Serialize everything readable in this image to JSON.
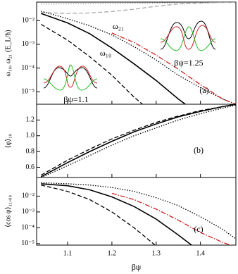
{
  "chart_data": [
    {
      "type": "line",
      "log_y": true,
      "ylabel": "ω₁₀, ω₂₁ (E_L/ħ)",
      "x": [
        1.04,
        1.1,
        1.15,
        1.2,
        1.25,
        1.3,
        1.35,
        1.4,
        1.45,
        1.48
      ],
      "xlim": [
        1.03,
        1.48
      ],
      "xticks": [
        1.1,
        1.2,
        1.3,
        1.4
      ],
      "ylim": [
        3e-06,
        0.06
      ],
      "yticks": [
        {
          "value": 0.01,
          "label": "10⁻²"
        },
        {
          "value": 0.001,
          "label": "10⁻³"
        },
        {
          "value": 0.0001,
          "label": "10⁻⁴"
        },
        {
          "value": 1e-05,
          "label": "10⁻⁵"
        }
      ],
      "series": [
        {
          "color": "#999999",
          "style": "dotted",
          "values": [
            0.05,
            0.051,
            0.052,
            0.053,
            0.054,
            0.055,
            0.056,
            0.057,
            0.058,
            0.058
          ]
        },
        {
          "color": "#aaaaaa",
          "style": "dashed",
          "values": [
            0.022,
            0.02,
            0.021,
            0.024,
            0.03,
            0.04,
            0.05,
            0.055,
            0.058,
            0.06
          ]
        },
        {
          "color": "#000000",
          "style": "solid",
          "values": [
            0.02,
            0.008,
            0.0028,
            0.0007,
            0.00015,
            3e-05,
            5e-06,
            1e-06,
            null,
            null
          ]
        },
        {
          "color": "#000000",
          "style": "dashed",
          "values": [
            0.007,
            0.0015,
            0.0003,
            5e-05,
            6e-06,
            1e-06,
            null,
            null,
            null,
            null
          ]
        },
        {
          "color": "#000000",
          "style": "dotted",
          "values": [
            0.025,
            0.012,
            0.006,
            0.0025,
            0.0008,
            0.00022,
            5e-05,
            1.5e-05,
            5e-06,
            3e-06
          ]
        },
        {
          "color": "#cc2222",
          "style": "dashdot",
          "values": [
            null,
            null,
            null,
            0.003,
            0.0012,
            0.00035,
            9e-05,
            2e-05,
            5e-06,
            3e-06
          ]
        }
      ],
      "annotations": [
        "ω₂₁",
        "ω₁₀",
        "βψ=1.25",
        "βψ=1.1",
        "(a)"
      ]
    },
    {
      "type": "line",
      "log_y": false,
      "ylabel": "⟨φ⟩₁₀",
      "x": [
        1.04,
        1.1,
        1.15,
        1.2,
        1.25,
        1.3,
        1.35,
        1.4,
        1.45,
        1.48
      ],
      "xlim": [
        1.03,
        1.48
      ],
      "xticks": [
        1.1,
        1.2,
        1.3,
        1.4
      ],
      "ylim": [
        0.47,
        1.4
      ],
      "yticks": [
        {
          "value": 0.6,
          "label": "0.6"
        },
        {
          "value": 0.8,
          "label": "0.8"
        },
        {
          "value": 1,
          "label": "1.0"
        },
        1.2
      ],
      "series": [
        {
          "color": "#000000",
          "style": "solid",
          "values": [
            0.48,
            0.66,
            0.8,
            0.93,
            1.05,
            1.15,
            1.24,
            1.31,
            1.37,
            1.4
          ]
        },
        {
          "color": "#000000",
          "style": "dashed",
          "values": [
            0.5,
            0.69,
            0.83,
            0.96,
            1.07,
            1.17,
            1.25,
            1.32,
            1.37,
            1.4
          ]
        },
        {
          "color": "#000000",
          "style": "dotted",
          "values": [
            0.47,
            0.62,
            0.75,
            0.88,
            1,
            1.1,
            1.2,
            1.28,
            1.35,
            1.39
          ]
        }
      ],
      "annotations": [
        "(b)"
      ]
    },
    {
      "type": "line",
      "log_y": true,
      "ylabel": "⟨cos φ⟩₁₁,₀₀",
      "xlabel": "βψ",
      "x": [
        1.04,
        1.1,
        1.15,
        1.2,
        1.25,
        1.3,
        1.35,
        1.4,
        1.45,
        1.48
      ],
      "xlim": [
        1.03,
        1.48
      ],
      "xticks": [
        1.1,
        1.2,
        1.3,
        1.4
      ],
      "ylim": [
        8e-06,
        0.15
      ],
      "yticks": [
        {
          "value": 0.01,
          "label": "10⁻²"
        },
        {
          "value": 0.001,
          "label": "10⁻³"
        },
        {
          "value": 0.0001,
          "label": "10⁻⁴"
        },
        {
          "value": 1e-05,
          "label": "10⁻⁵"
        }
      ],
      "series": [
        {
          "color": "#000000",
          "style": "solid",
          "values": [
            0.06,
            0.045,
            0.025,
            0.009,
            0.0022,
            0.00035,
            3.5e-05,
            3e-06,
            null,
            null
          ]
        },
        {
          "color": "#000000",
          "style": "dashed",
          "values": [
            0.05,
            0.02,
            0.006,
            0.001,
            0.0001,
            7e-06,
            null,
            null,
            null,
            null
          ]
        },
        {
          "color": "#000000",
          "style": "dotted",
          "values": [
            0.07,
            0.06,
            0.05,
            0.035,
            0.02,
            0.008,
            0.0025,
            0.0005,
            8e-05,
            2e-05
          ]
        },
        {
          "color": "#cc2222",
          "style": "dashdot",
          "values": [
            null,
            null,
            null,
            0.015,
            0.006,
            0.0015,
            0.0003,
            5e-05,
            1.2e-05,
            6e-06
          ]
        }
      ],
      "annotations": [
        "(c)"
      ]
    }
  ]
}
